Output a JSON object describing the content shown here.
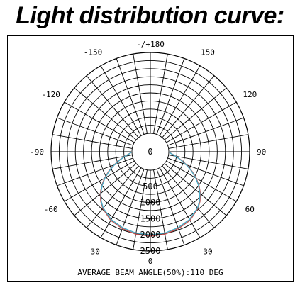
{
  "title": "Light distribution curve:",
  "chart_data": {
    "type": "polar",
    "title": "Light distribution curve:",
    "angle_labels": [
      {
        "angle": 0,
        "text": "0"
      },
      {
        "angle": 30,
        "text": "30"
      },
      {
        "angle": 60,
        "text": "60"
      },
      {
        "angle": 90,
        "text": "90"
      },
      {
        "angle": 120,
        "text": "120"
      },
      {
        "angle": 150,
        "text": "150"
      },
      {
        "angle": 180,
        "text": "-/+180"
      },
      {
        "angle": -150,
        "text": "-150"
      },
      {
        "angle": -120,
        "text": "-120"
      },
      {
        "angle": -90,
        "text": "-90"
      },
      {
        "angle": -60,
        "text": "-60"
      },
      {
        "angle": -30,
        "text": "-30"
      }
    ],
    "radial_ticks": [
      500,
      1000,
      1500,
      2000,
      2500
    ],
    "radial_max": 2500,
    "colors": {
      "c0": "#c0504d",
      "c90": "#4bacc6"
    },
    "series": [
      {
        "angles": [
          0,
          10,
          20,
          30,
          40,
          45,
          50,
          55,
          60,
          65,
          70,
          75,
          80,
          85,
          90
        ],
        "values": [
          2040,
          2020,
          1960,
          1880,
          1720,
          1600,
          1450,
          1270,
          1070,
          850,
          630,
          420,
          230,
          80,
          0
        ]
      },
      {
        "angles": [
          0,
          10,
          20,
          30,
          40,
          45,
          50,
          55,
          60,
          65,
          70,
          75,
          80,
          85,
          90
        ],
        "values": [
          2000,
          1985,
          1930,
          1850,
          1700,
          1580,
          1430,
          1250,
          1050,
          830,
          610,
          400,
          220,
          70,
          0
        ]
      }
    ],
    "note": "AVERAGE BEAM ANGLE(50%):110 DEG"
  }
}
